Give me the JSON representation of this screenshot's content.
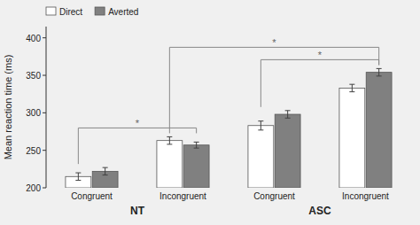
{
  "chart_data": {
    "type": "bar",
    "y_label": "Mean reaction time (ms)",
    "categories": [
      "Congruent",
      "Incongruent",
      "Congruent",
      "Incongruent"
    ],
    "groups": [
      "NT",
      "ASC"
    ],
    "series": [
      {
        "name": "Direct",
        "color": "white",
        "values": [
          215,
          263,
          283,
          333
        ],
        "errors": [
          5,
          5,
          6,
          5
        ]
      },
      {
        "name": "Averted",
        "color": "#808080",
        "values": [
          222,
          257,
          298,
          354
        ],
        "errors": [
          5,
          4,
          5,
          5
        ]
      }
    ],
    "annotations": [
      {
        "text": "*",
        "categories": [
          0,
          1
        ]
      },
      {
        "text": "*",
        "categories": [
          2,
          3
        ]
      },
      {
        "text": "*",
        "categories": [
          1,
          3
        ]
      }
    ],
    "ylim": [
      200,
      415
    ],
    "yticks": [
      200,
      250,
      300,
      350,
      400
    ],
    "grid": false,
    "legend": "upper left"
  }
}
